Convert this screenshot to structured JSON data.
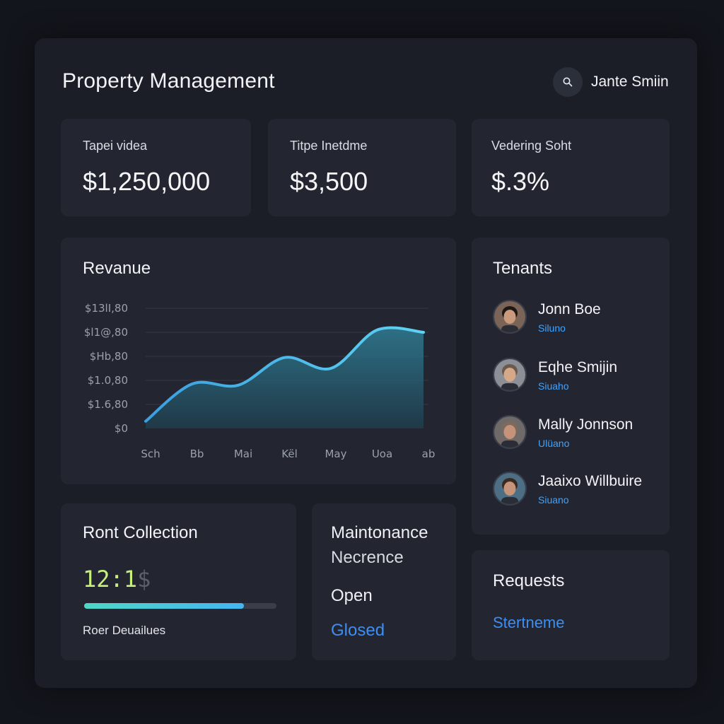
{
  "header": {
    "title": "Property Management",
    "user_name": "Jante Smiin",
    "user_icon": "search-icon"
  },
  "stats": [
    {
      "label": "Tapei videa",
      "value": "$1,250,000"
    },
    {
      "label": "Titpe Inetdme",
      "value": "$3,500"
    },
    {
      "label": "Vedering Soht",
      "value": "$.3%"
    }
  ],
  "revenue": {
    "title": "Revanue"
  },
  "chart_data": {
    "type": "area",
    "title": "Revanue",
    "categories": [
      "Sch",
      "Bb",
      "Mai",
      "Kël",
      "May",
      "Uoa",
      "ab"
    ],
    "y_tick_labels": [
      "$0",
      "$1.6,80",
      "$1.0,80",
      "$Hb,80",
      "$l1@,80",
      "$13lI,80"
    ],
    "y_tick_values": [
      0,
      1,
      2,
      3,
      4,
      5
    ],
    "ylim": [
      0,
      5
    ],
    "values": [
      0.3,
      1.85,
      1.8,
      2.95,
      2.5,
      4.1,
      4.0
    ],
    "color": "#4fb6e8",
    "grid": true,
    "legend": "none"
  },
  "tenants": {
    "title": "Tenants",
    "items": [
      {
        "name": "Jonn Boe",
        "status": "Siluno",
        "skin": "#c99a7c",
        "hair": "#1f1712",
        "bg": "#7a6458"
      },
      {
        "name": "Eqhe Smijin",
        "status": "Siuaho",
        "skin": "#d5a88a",
        "hair": "#6b5a4c",
        "bg": "#8c8f96"
      },
      {
        "name": "Mally Jonnson",
        "status": "Ulüano",
        "skin": "#c4937a",
        "hair": "#7d6a5c",
        "bg": "#6f6a68"
      },
      {
        "name": "Jaaixo Willbuire",
        "status": "Siuano",
        "skin": "#c69478",
        "hair": "#3a2a20",
        "bg": "#4d6f86"
      }
    ]
  },
  "rent_collection": {
    "title": "Ront Collection",
    "value": "12:1$",
    "progress": 0.83,
    "subtitle": "Roer Deuailues"
  },
  "maintenance": {
    "title_line1": "Maintonance",
    "title_line2": "Necrence",
    "open_label": "Open",
    "closed_label": "Glosed"
  },
  "requests": {
    "title": "Requests",
    "link_label": "Stertneme"
  },
  "colors": {
    "background": "#13151c",
    "panel": "#1b1e26",
    "card": "#232631",
    "accent_blue": "#3d8ef2",
    "rent_value_gradient": [
      "#c6f07a",
      "#5a5f6b"
    ]
  }
}
